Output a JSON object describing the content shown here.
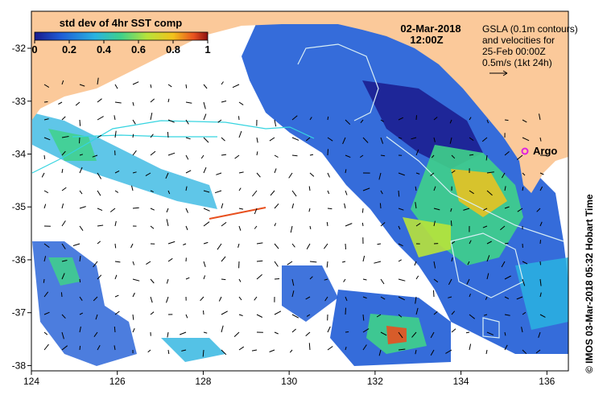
{
  "map": {
    "lon_range": [
      124,
      136.5
    ],
    "lat_range": [
      -38.1,
      -31.3
    ],
    "x_ticks": [
      "124",
      "126",
      "128",
      "130",
      "132",
      "134",
      "136"
    ],
    "y_ticks": [
      "-32",
      "-33",
      "-34",
      "-35",
      "-36",
      "-37",
      "-38"
    ]
  },
  "colorbar": {
    "title": "std dev of 4hr SST comp",
    "ticks": [
      "0",
      "0.2",
      "0.4",
      "0.6",
      "0.8",
      "1"
    ],
    "colors": [
      "#1a1a8c",
      "#1f5cd6",
      "#29b3e0",
      "#3fd18a",
      "#b8e33a",
      "#f2c21b",
      "#e8501f",
      "#8c1010"
    ]
  },
  "datetime": {
    "date": "02-Mar-2018",
    "time": "12:00Z"
  },
  "gsla": {
    "line1": "GSLA (0.1m contours)",
    "line2": "and velocities for",
    "line3": "25-Feb 00:00Z",
    "scale": "0.5m/s (1kt 24h)"
  },
  "argo": {
    "label": "Argo",
    "lon": 135.5,
    "lat": -33.9,
    "color": "#e020e0"
  },
  "credit": "© IMOS 03-Mar-2018 05:32 Hobart Time",
  "colors": {
    "land": "#fbc99a",
    "ocean_empty": "#ffffff",
    "contour": "#36d4e0",
    "contour_light": "#d8eef5"
  }
}
